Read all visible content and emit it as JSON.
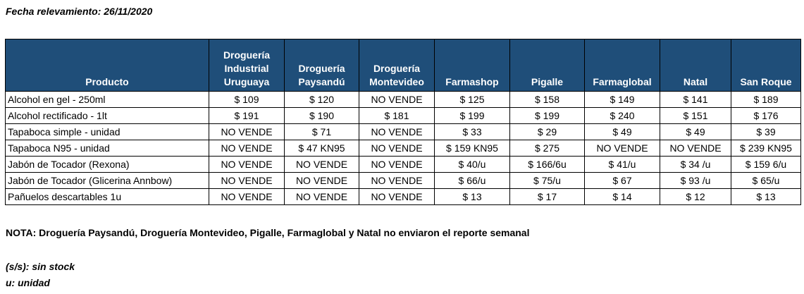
{
  "date_line": "Fecha relevamiento: 26/11/2020",
  "table": {
    "headers": [
      "Producto",
      "Droguería Industrial Uruguaya",
      "Droguería Paysandú",
      "Droguería Montevideo",
      "Farmashop",
      "Pigalle",
      "Farmaglobal",
      "Natal",
      "San Roque"
    ],
    "rows": [
      [
        "Alcohol en gel  - 250ml",
        "$ 109",
        "$ 120",
        "NO VENDE",
        "$ 125",
        "$ 158",
        "$ 149",
        "$ 141",
        "$ 189"
      ],
      [
        "Alcohol rectificado - 1lt",
        "$ 191",
        "$ 190",
        "$ 181",
        "$ 199",
        "$ 199",
        "$ 240",
        "$ 151",
        "$ 176"
      ],
      [
        "Tapaboca simple - unidad",
        "NO VENDE",
        "$ 71",
        "NO VENDE",
        "$ 33",
        "$ 29",
        "$ 49",
        "$ 49",
        "$ 39"
      ],
      [
        "Tapaboca N95 - unidad",
        "NO VENDE",
        "$ 47  KN95",
        "NO VENDE",
        "$ 159  KN95",
        "$ 275",
        "NO VENDE",
        "NO VENDE",
        "$ 239  KN95"
      ],
      [
        "Jabón de Tocador (Rexona)",
        "NO VENDE",
        "NO VENDE",
        "NO VENDE",
        "$ 40/u",
        "$ 166/6u",
        "$ 41/u",
        "$ 34 /u",
        "$ 159 6/u"
      ],
      [
        "Jabón de Tocador (Glicerina Annbow)",
        "NO VENDE",
        "NO VENDE",
        "NO VENDE",
        "$ 66/u",
        "$ 75/u",
        "$ 67",
        "$ 93 /u",
        "$ 65/u"
      ],
      [
        "Pañuelos descartables 1u",
        "NO VENDE",
        "NO VENDE",
        "NO VENDE",
        "$ 13",
        "$ 17",
        "$ 14",
        "$ 12",
        "$ 13"
      ]
    ]
  },
  "note": "NOTA: Droguería Paysandú, Droguería Montevideo, Pigalle, Farmaglobal y Natal no enviaron el reporte semanal",
  "legend": {
    "ss": "(s/s): sin stock",
    "u": "u: unidad"
  }
}
